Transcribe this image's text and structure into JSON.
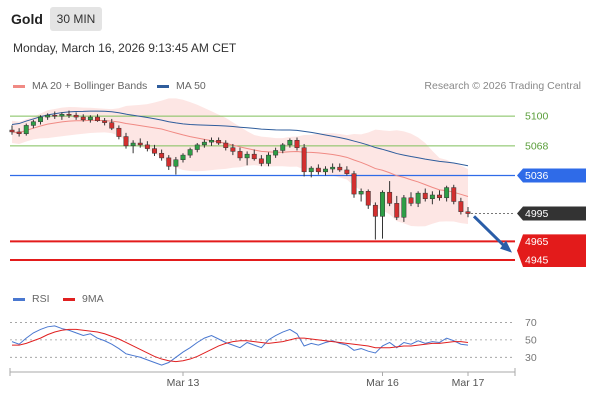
{
  "header": {
    "title": "Gold",
    "timeframe": "30 MIN",
    "datetime": "Monday, March 16, 2026 9:13:45 AM CET"
  },
  "legend": {
    "items": [
      {
        "name": "MA 20 + Bollinger Bands",
        "color": "#f08a84"
      },
      {
        "name": "MA 50",
        "color": "#2f5d9c"
      }
    ],
    "credit": "Research © 2026 Trading Central"
  },
  "rsi_legend": {
    "items": [
      {
        "name": "RSI",
        "color": "#4a78d0"
      },
      {
        "name": "9MA",
        "color": "#e02020"
      }
    ]
  },
  "colors": {
    "up": "#2e9e46",
    "down": "#d32f2f",
    "support": "#e31b1b",
    "resistance": "#2f6be8",
    "target": "#7fbf5a",
    "last": "#333333",
    "arrow": "#2a5da8"
  },
  "chart_data": [
    {
      "type": "candlestick",
      "ylim": [
        4918,
        5112
      ],
      "x_ticks": [
        "Mar 13",
        "Mar 16",
        "Mar 17"
      ],
      "ohlc": [
        [
          5085,
          5090,
          5080,
          5083
        ],
        [
          5083,
          5087,
          5078,
          5081
        ],
        [
          5081,
          5092,
          5079,
          5090
        ],
        [
          5090,
          5096,
          5087,
          5094
        ],
        [
          5094,
          5101,
          5091,
          5099
        ],
        [
          5099,
          5103,
          5096,
          5101
        ],
        [
          5101,
          5105,
          5097,
          5100
        ],
        [
          5100,
          5104,
          5096,
          5102
        ],
        [
          5102,
          5106,
          5098,
          5101
        ],
        [
          5101,
          5104,
          5096,
          5099
        ],
        [
          5099,
          5102,
          5094,
          5096
        ],
        [
          5096,
          5101,
          5093,
          5099
        ],
        [
          5099,
          5102,
          5094,
          5095
        ],
        [
          5095,
          5098,
          5090,
          5093
        ],
        [
          5093,
          5097,
          5085,
          5087
        ],
        [
          5087,
          5090,
          5075,
          5078
        ],
        [
          5078,
          5082,
          5065,
          5068
        ],
        [
          5068,
          5074,
          5060,
          5071
        ],
        [
          5071,
          5076,
          5066,
          5069
        ],
        [
          5069,
          5073,
          5062,
          5065
        ],
        [
          5065,
          5069,
          5057,
          5060
        ],
        [
          5060,
          5064,
          5052,
          5055
        ],
        [
          5055,
          5058,
          5042,
          5046
        ],
        [
          5046,
          5056,
          5037,
          5053
        ],
        [
          5053,
          5060,
          5050,
          5058
        ],
        [
          5058,
          5066,
          5055,
          5064
        ],
        [
          5064,
          5071,
          5061,
          5069
        ],
        [
          5069,
          5075,
          5066,
          5072
        ],
        [
          5072,
          5077,
          5068,
          5074
        ],
        [
          5074,
          5077,
          5069,
          5071
        ],
        [
          5071,
          5074,
          5063,
          5066
        ],
        [
          5066,
          5070,
          5058,
          5062
        ],
        [
          5062,
          5066,
          5052,
          5055
        ],
        [
          5055,
          5062,
          5047,
          5059
        ],
        [
          5059,
          5064,
          5052,
          5054
        ],
        [
          5054,
          5058,
          5046,
          5049
        ],
        [
          5049,
          5061,
          5046,
          5058
        ],
        [
          5058,
          5066,
          5055,
          5063
        ],
        [
          5063,
          5071,
          5060,
          5069
        ],
        [
          5069,
          5076,
          5066,
          5074
        ],
        [
          5074,
          5077,
          5063,
          5066
        ],
        [
          5066,
          5070,
          5035,
          5040
        ],
        [
          5040,
          5046,
          5034,
          5044
        ],
        [
          5044,
          5048,
          5037,
          5040
        ],
        [
          5040,
          5046,
          5036,
          5043
        ],
        [
          5043,
          5049,
          5039,
          5045
        ],
        [
          5045,
          5049,
          5040,
          5042
        ],
        [
          5042,
          5046,
          5036,
          5038
        ],
        [
          5038,
          5041,
          5012,
          5016
        ],
        [
          5016,
          5022,
          5008,
          5019
        ],
        [
          5019,
          5021,
          5000,
          5004
        ],
        [
          5004,
          5007,
          4967,
          4992
        ],
        [
          4992,
          5020,
          4968,
          5018
        ],
        [
          5018,
          5030,
          5003,
          5006
        ],
        [
          5006,
          5014,
          4988,
          4991
        ],
        [
          4991,
          5015,
          4986,
          5012
        ],
        [
          5012,
          5018,
          5003,
          5006
        ],
        [
          5006,
          5019,
          5002,
          5017
        ],
        [
          5017,
          5022,
          5008,
          5011
        ],
        [
          5011,
          5019,
          5005,
          5015
        ],
        [
          5015,
          5020,
          5009,
          5012
        ],
        [
          5012,
          5025,
          5008,
          5023
        ],
        [
          5023,
          5026,
          5005,
          5008
        ],
        [
          5008,
          5012,
          4994,
          4997
        ],
        [
          4997,
          5002,
          4991,
          4995
        ]
      ]
    },
    {
      "type": "line",
      "ylim": [
        20,
        82
      ],
      "y_ticks": [
        70,
        50,
        30
      ],
      "series": [
        {
          "name": "RSI",
          "values": [
            48,
            45,
            52,
            58,
            62,
            65,
            66,
            63,
            61,
            58,
            55,
            57,
            52,
            49,
            45,
            40,
            34,
            32,
            30,
            27,
            24,
            21,
            24,
            30,
            36,
            41,
            47,
            52,
            55,
            51,
            47,
            44,
            41,
            47,
            44,
            41,
            50,
            55,
            59,
            62,
            57,
            43,
            46,
            44,
            47,
            49,
            46,
            44,
            38,
            40,
            37,
            35,
            43,
            47,
            41,
            47,
            45,
            49,
            46,
            48,
            47,
            52,
            49,
            45,
            44
          ]
        },
        {
          "name": "9MA",
          "values": [
            44,
            44,
            46,
            49,
            52,
            56,
            59,
            61,
            62,
            62,
            61,
            60,
            59,
            57,
            54,
            51,
            47,
            43,
            39,
            35,
            31,
            28,
            26,
            25,
            26,
            28,
            31,
            35,
            39,
            43,
            46,
            48,
            49,
            49,
            48,
            47,
            46,
            47,
            48,
            50,
            52,
            52,
            51,
            50,
            49,
            48,
            47,
            46,
            45,
            44,
            43,
            41,
            41,
            41,
            42,
            43,
            43,
            44,
            45,
            46,
            46,
            47,
            48,
            48,
            47
          ]
        }
      ]
    }
  ],
  "levels": {
    "r2": {
      "value": 5100,
      "label": "5100"
    },
    "r1": {
      "value": 5068,
      "label": "5068"
    },
    "pivot": {
      "value": 5036,
      "label": "5036"
    },
    "last": {
      "value": 4995,
      "label": "4995"
    },
    "s1": {
      "value": 4965,
      "label": "4965"
    },
    "s2": {
      "value": 4945,
      "label": "4945"
    }
  }
}
